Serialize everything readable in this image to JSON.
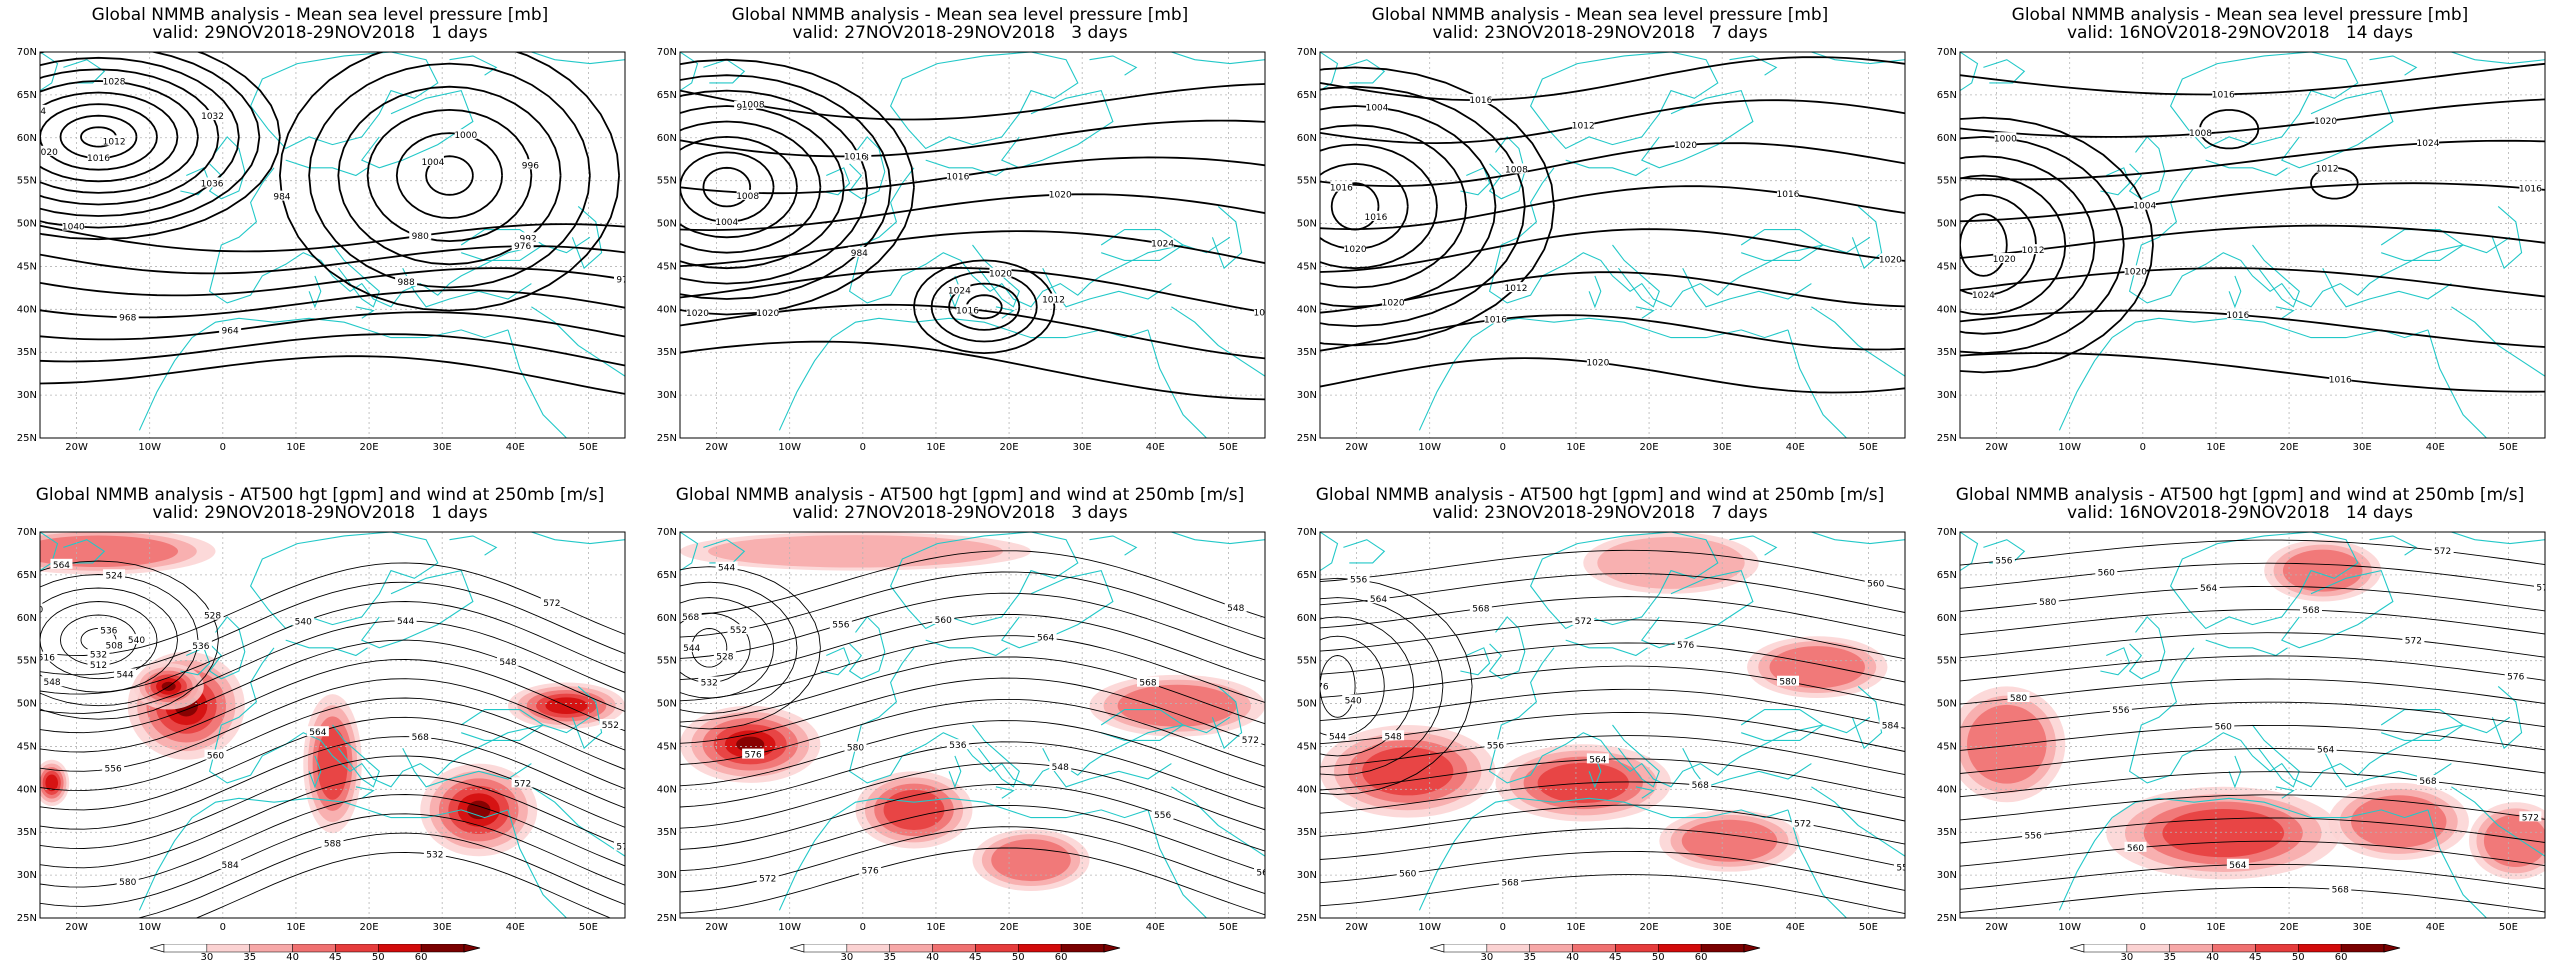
{
  "panels": [
    {
      "title": "Global NMMB analysis - Mean sea level pressure [mb]",
      "subtitle": "valid: 29NOV2018-29NOV2018   1 days",
      "kind": "mslp",
      "contour_labels": [
        "1012",
        "1016",
        "1020",
        "1024",
        "1028",
        "1032",
        "1036",
        "1040",
        "1008",
        "1004",
        "1000",
        "996",
        "992",
        "988",
        "984",
        "980",
        "976",
        "972",
        "968",
        "964"
      ]
    },
    {
      "title": "Global NMMB analysis - Mean sea level pressure [mb]",
      "subtitle": "valid: 27NOV2018-29NOV2018   3 days",
      "kind": "mslp",
      "contour_labels": [
        "1008",
        "1004",
        "1000",
        "996",
        "992",
        "988",
        "984",
        "1020",
        "1016",
        "1024",
        "1020",
        "1012",
        "1008",
        "1016",
        "1016",
        "1020",
        "1024",
        "1016",
        "1020"
      ]
    },
    {
      "title": "Global NMMB analysis - Mean sea level pressure [mb]",
      "subtitle": "valid: 23NOV2018-29NOV2018   7 days",
      "kind": "mslp",
      "contour_labels": [
        "1016",
        "1020",
        "996",
        "1000",
        "1004",
        "1008",
        "1012",
        "1016",
        "1012",
        "1020",
        "1016",
        "1020",
        "1020",
        "1016",
        "1020",
        "1016"
      ]
    },
    {
      "title": "Global NMMB analysis - Mean sea level pressure [mb]",
      "subtitle": "valid: 16NOV2018-29NOV2018   14 days",
      "kind": "mslp",
      "contour_labels": [
        "1020",
        "1024",
        "1028",
        "1028",
        "1000",
        "1004",
        "1008",
        "1012",
        "1016",
        "1020",
        "1024",
        "1016",
        "1012",
        "1020",
        "1016",
        "1016"
      ]
    },
    {
      "title": "Global NMMB analysis - AT500 hgt [gpm] and wind at 250mb [m/s]",
      "subtitle": "valid: 29NOV2018-29NOV2018   1 days",
      "kind": "z500",
      "contour_labels": [
        "508",
        "512",
        "516",
        "520",
        "524",
        "528",
        "532",
        "536",
        "540",
        "544",
        "548",
        "552",
        "556",
        "560",
        "564",
        "568",
        "572",
        "576",
        "580",
        "584",
        "588",
        "532",
        "536",
        "540",
        "544",
        "548",
        "556",
        "564",
        "572"
      ]
    },
    {
      "title": "Global NMMB analysis - AT500 hgt [gpm] and wind at 250mb [m/s]",
      "subtitle": "valid: 27NOV2018-29NOV2018   3 days",
      "kind": "z500",
      "contour_labels": [
        "528",
        "532",
        "536",
        "540",
        "544",
        "548",
        "552",
        "556",
        "560",
        "564",
        "568",
        "572",
        "576",
        "580",
        "536",
        "548",
        "556",
        "564",
        "572",
        "576",
        "544",
        "568"
      ]
    },
    {
      "title": "Global NMMB analysis - AT500 hgt [gpm] and wind at 250mb [m/s]",
      "subtitle": "valid: 23NOV2018-29NOV2018   7 days",
      "kind": "z500",
      "contour_labels": [
        "540",
        "544",
        "548",
        "552",
        "556",
        "560",
        "564",
        "568",
        "572",
        "576",
        "580",
        "584",
        "548",
        "556",
        "564",
        "568",
        "572",
        "552",
        "560",
        "568",
        "576"
      ]
    },
    {
      "title": "Global NMMB analysis - AT500 hgt [gpm] and wind at 250mb [m/s]",
      "subtitle": "valid: 16NOV2018-29NOV2018   14 days",
      "kind": "z500",
      "contour_labels": [
        "556",
        "560",
        "564",
        "568",
        "572",
        "576",
        "580",
        "556",
        "560",
        "564",
        "568",
        "572",
        "556",
        "560",
        "564",
        "568",
        "572",
        "576",
        "580"
      ]
    }
  ],
  "axes": {
    "lat_labels": [
      "70N",
      "65N",
      "60N",
      "55N",
      "50N",
      "45N",
      "40N",
      "35N",
      "30N",
      "25N"
    ],
    "lon_labels": [
      "20W",
      "10W",
      "0",
      "10E",
      "20E",
      "30E",
      "40E",
      "50E"
    ]
  },
  "colorbar": {
    "labels": [
      "30",
      "35",
      "40",
      "45",
      "50",
      "60"
    ],
    "colors": [
      "#ffffff",
      "#fbd2d2",
      "#f7a8a8",
      "#f07070",
      "#e63c3c",
      "#d20a0a",
      "#7a0000"
    ]
  },
  "colors": {
    "coast": "#22c8c8",
    "contour": "#000000",
    "wind": "#e60000"
  }
}
